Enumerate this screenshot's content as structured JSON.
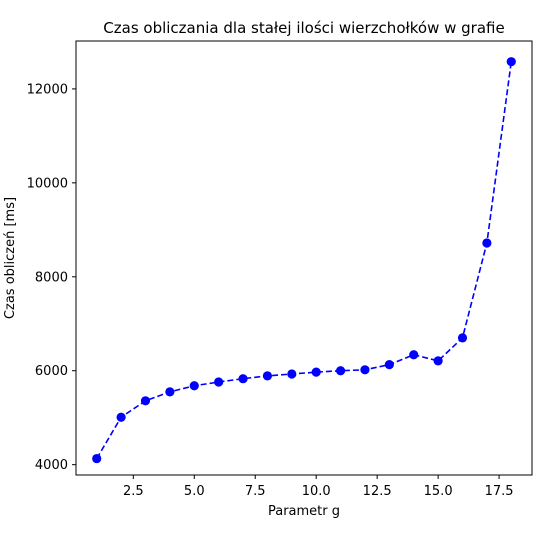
{
  "chart_data": {
    "type": "line",
    "title": "Czas obliczania dla stałej ilości wierzchołków w grafie",
    "xlabel": "Parametr g",
    "ylabel": "Czas obliczeń [ms]",
    "xlim": [
      0.15,
      18.85
    ],
    "ylim": [
      3780,
      13020
    ],
    "xticks": [
      2.5,
      5.0,
      7.5,
      10.0,
      12.5,
      15.0,
      17.5
    ],
    "xtick_labels": [
      "2.5",
      "5.0",
      "7.5",
      "10.0",
      "12.5",
      "15.0",
      "17.5"
    ],
    "yticks": [
      4000,
      6000,
      8000,
      10000,
      12000
    ],
    "ytick_labels": [
      "4000",
      "6000",
      "8000",
      "10000",
      "12000"
    ],
    "grid": false,
    "legend": false,
    "series": [
      {
        "color": "#0000ff",
        "line_style": "dashed",
        "marker": "circle",
        "x": [
          1,
          2,
          3,
          4,
          5,
          6,
          7,
          8,
          9,
          10,
          11,
          12,
          13,
          14,
          15,
          16,
          17,
          18
        ],
        "y": [
          4130,
          5010,
          5360,
          5550,
          5680,
          5760,
          5830,
          5890,
          5930,
          5970,
          6000,
          6020,
          6130,
          6340,
          6210,
          6700,
          8720,
          12580
        ]
      }
    ]
  }
}
